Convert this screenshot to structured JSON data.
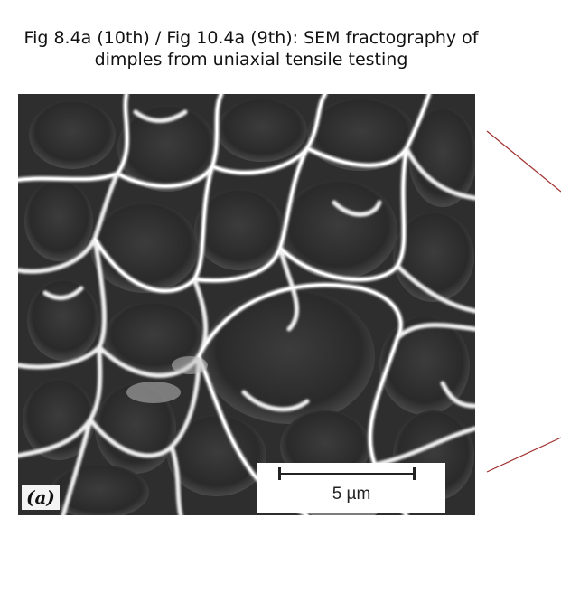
{
  "caption": {
    "line1": "Fig 8.4a (10th) / Fig 10.4a (9th): SEM fractography of",
    "line2": "dimples from uniaxial tensile testing"
  },
  "micrograph": {
    "panel_label": "(a)",
    "scale_bar_label": "5 µm"
  },
  "colors": {
    "connector_lines": "#a0302e"
  }
}
